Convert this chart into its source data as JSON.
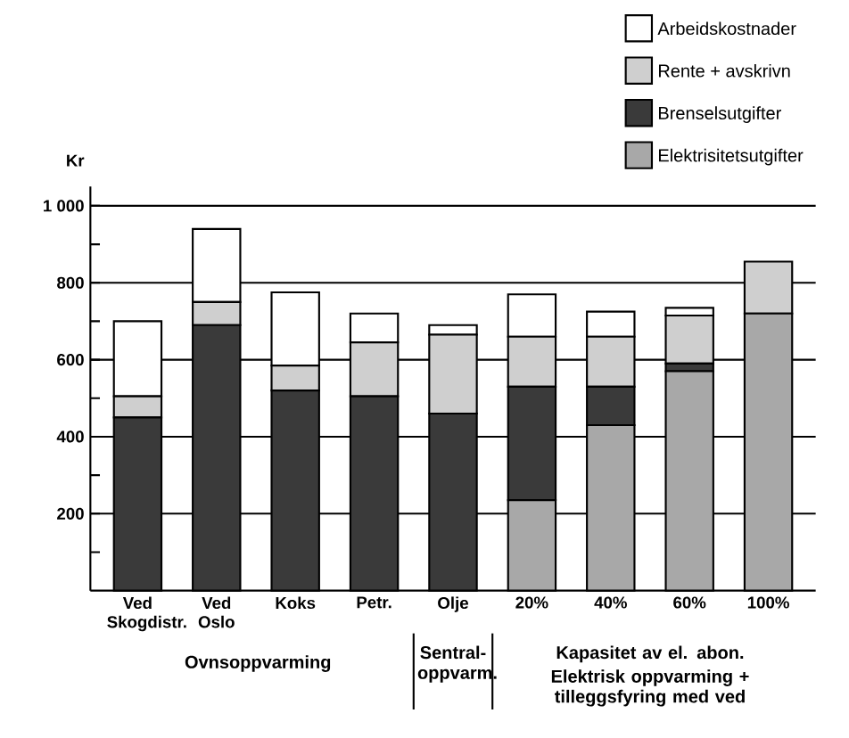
{
  "chart_data": {
    "type": "bar",
    "stacked": true,
    "ylabel": "Kr",
    "categories": [
      "Ved Skogdistr.",
      "Ved Oslo",
      "Koks",
      "Petr.",
      "Olje",
      "20%",
      "40%",
      "60%",
      "100%"
    ],
    "series": [
      {
        "name": "Elektrisitetsutgifter",
        "color": "#a8a8a8",
        "values": [
          null,
          null,
          null,
          null,
          null,
          235,
          430,
          570,
          720
        ]
      },
      {
        "name": "Brenselsutgifter",
        "color": "#3a3a3a",
        "values": [
          450,
          690,
          520,
          505,
          460,
          295,
          100,
          20,
          null
        ]
      },
      {
        "name": "Rente + avskrivn",
        "color": "#cfcfcf",
        "values": [
          55,
          60,
          65,
          140,
          205,
          130,
          130,
          125,
          135
        ]
      },
      {
        "name": "Arbeidskostnader",
        "color": "#ffffff",
        "values": [
          195,
          190,
          190,
          75,
          25,
          110,
          65,
          20,
          null
        ]
      }
    ],
    "ylim": [
      0,
      1050
    ],
    "yticks": [
      {
        "value": 100,
        "label": null
      },
      200,
      {
        "value": 300,
        "label": null
      },
      400,
      {
        "value": 500,
        "label": null
      },
      600,
      {
        "value": 700,
        "label": null
      },
      800,
      {
        "value": 900,
        "label": null
      },
      {
        "value": 1000,
        "label": "1 000"
      }
    ],
    "grid": "y",
    "legend": "top right",
    "annotations": [
      "Ovnsoppvarming",
      "Sentral-oppvarm.",
      "Kapasitet av el. abon.",
      "Elektrisk oppvarming + tilleggsfyring med ved"
    ]
  }
}
